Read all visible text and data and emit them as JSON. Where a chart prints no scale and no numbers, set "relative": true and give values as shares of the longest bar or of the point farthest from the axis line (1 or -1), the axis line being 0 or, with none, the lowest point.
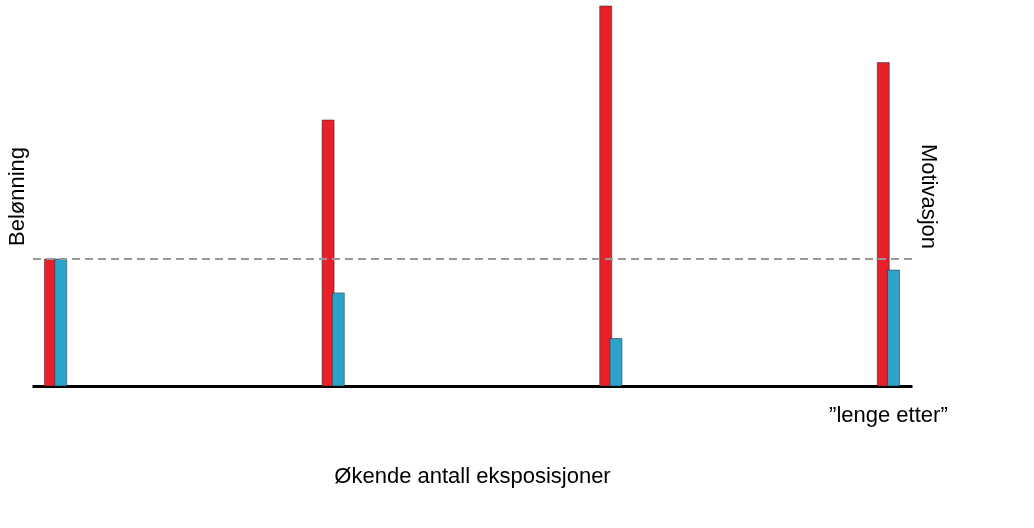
{
  "chart_data": {
    "type": "bar",
    "relative": true,
    "categories": [
      null,
      null,
      null,
      "”lenge etter”"
    ],
    "xlabel": "Økende antall eksposisjoner",
    "ylabel": "Belønning",
    "y2label": "Motivasjon",
    "series": [
      {
        "color": "#e8202a",
        "values": [
          0.334,
          0.7,
          1,
          0.851
        ]
      },
      {
        "color": "#2ea3c9",
        "values": [
          0.334,
          0.245,
          0.125,
          0.305
        ]
      }
    ],
    "ref_lines": [
      {
        "axis": "y",
        "value": 0.334,
        "color": "#999999",
        "line_style": "dashed"
      }
    ],
    "grid": false
  }
}
